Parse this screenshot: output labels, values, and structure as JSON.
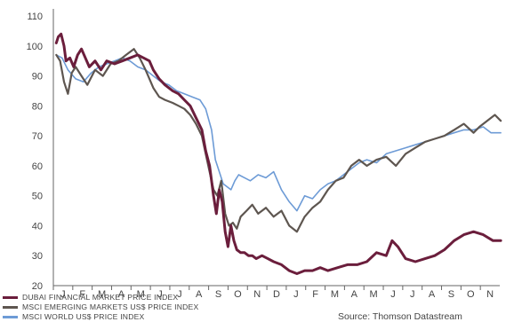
{
  "chart_data": {
    "type": "line",
    "title": "",
    "xlabel": "",
    "ylabel": "",
    "ylim": [
      20,
      110
    ],
    "yticks": [
      20,
      30,
      40,
      50,
      60,
      70,
      80,
      90,
      100,
      110
    ],
    "months": [
      "J",
      "F",
      "M",
      "A",
      "M",
      "J",
      "J",
      "A",
      "S",
      "O",
      "N",
      "D",
      "J",
      "F",
      "M",
      "A",
      "M",
      "J",
      "J",
      "A",
      "S",
      "O",
      "N"
    ],
    "series": [
      {
        "name": "DUBAI FINANCIAL MARKET PRICE INDEX",
        "color": "#6b1e3c",
        "x": [
          0,
          0.1,
          0.25,
          0.4,
          0.5,
          0.7,
          0.9,
          1.1,
          1.3,
          1.5,
          1.7,
          2.0,
          2.3,
          2.6,
          3.0,
          3.4,
          3.8,
          4.2,
          4.5,
          4.8,
          5.0,
          5.3,
          5.6,
          6.0,
          6.3,
          6.6,
          6.9,
          7.2,
          7.5,
          7.7,
          7.9,
          8.1,
          8.25,
          8.4,
          8.55,
          8.7,
          8.85,
          9.0,
          9.15,
          9.3,
          9.5,
          9.7,
          9.9,
          10.1,
          10.3,
          10.6,
          10.9,
          11.2,
          11.6,
          12.0,
          12.4,
          12.8,
          13.2,
          13.6,
          14.0,
          14.5,
          15.0,
          15.5,
          16.0,
          16.5,
          17.0,
          17.3,
          17.6,
          18.0,
          18.5,
          19.0,
          19.5,
          20.0,
          20.5,
          21.0,
          21.5,
          22.0,
          22.5,
          22.9
        ],
        "values": [
          101,
          103,
          104,
          100,
          95,
          96,
          93,
          97,
          99,
          96,
          93,
          95,
          92,
          95,
          94,
          95,
          96,
          97,
          96,
          95,
          92,
          89,
          87,
          85,
          84,
          82,
          80,
          76,
          72,
          65,
          60,
          50,
          44,
          52,
          48,
          38,
          33,
          40,
          35,
          32,
          31,
          31,
          30,
          30,
          29,
          30,
          29,
          28,
          27,
          25,
          24,
          25,
          25,
          26,
          25,
          26,
          27,
          27,
          28,
          31,
          30,
          35,
          33,
          29,
          28,
          29,
          30,
          32,
          35,
          37,
          38,
          37,
          35,
          35
        ]
      },
      {
        "name": "MSCI EMERGING MARKETS US$ PRICE INDEX",
        "color": "#5e5650",
        "x": [
          0,
          0.2,
          0.4,
          0.6,
          0.8,
          1.0,
          1.3,
          1.6,
          2.0,
          2.4,
          2.8,
          3.2,
          3.6,
          4.0,
          4.3,
          4.6,
          5.0,
          5.3,
          5.6,
          6.0,
          6.3,
          6.6,
          6.9,
          7.2,
          7.5,
          7.7,
          7.9,
          8.1,
          8.3,
          8.5,
          8.7,
          8.9,
          9.1,
          9.3,
          9.5,
          9.8,
          10.1,
          10.4,
          10.8,
          11.2,
          11.6,
          12.0,
          12.4,
          12.8,
          13.2,
          13.6,
          14.0,
          14.4,
          14.8,
          15.2,
          15.6,
          16.0,
          16.5,
          17.0,
          17.5,
          18.0,
          18.5,
          19.0,
          19.5,
          20.0,
          20.5,
          21.0,
          21.5,
          21.8,
          22.2,
          22.6,
          22.9
        ],
        "values": [
          97,
          95,
          88,
          84,
          91,
          93,
          90,
          87,
          92,
          90,
          94,
          95,
          97,
          99,
          96,
          92,
          86,
          83,
          82,
          81,
          80,
          79,
          77,
          74,
          70,
          64,
          58,
          52,
          50,
          55,
          44,
          40,
          41,
          39,
          43,
          45,
          47,
          44,
          46,
          43,
          45,
          40,
          38,
          43,
          46,
          48,
          52,
          55,
          56,
          60,
          62,
          60,
          62,
          63,
          60,
          64,
          66,
          68,
          69,
          70,
          72,
          74,
          71,
          73,
          75,
          77,
          75
        ]
      },
      {
        "name": "MSCI WORLD US$ PRICE INDEX",
        "color": "#6d9bd6",
        "x": [
          0,
          0.3,
          0.6,
          1.0,
          1.4,
          1.8,
          2.2,
          2.6,
          3.0,
          3.4,
          3.8,
          4.2,
          4.6,
          5.0,
          5.4,
          5.8,
          6.2,
          6.6,
          7.0,
          7.4,
          7.7,
          8.0,
          8.2,
          8.4,
          8.6,
          8.8,
          9.0,
          9.2,
          9.4,
          9.7,
          10.0,
          10.4,
          10.8,
          11.2,
          11.6,
          12.0,
          12.4,
          12.8,
          13.2,
          13.6,
          14.0,
          14.4,
          14.8,
          15.2,
          15.6,
          16.0,
          16.5,
          17.0,
          17.5,
          18.0,
          18.5,
          19.0,
          19.5,
          20.0,
          20.5,
          21.0,
          21.5,
          22.0,
          22.4,
          22.9
        ],
        "values": [
          97,
          96,
          92,
          89,
          88,
          91,
          93,
          94,
          95,
          96,
          95,
          93,
          92,
          90,
          88,
          87,
          85,
          84,
          83,
          82,
          79,
          72,
          62,
          58,
          54,
          53,
          52,
          55,
          57,
          56,
          55,
          57,
          56,
          58,
          52,
          48,
          45,
          50,
          49,
          52,
          54,
          55,
          57,
          59,
          61,
          62,
          61,
          64,
          65,
          66,
          67,
          68,
          69,
          70,
          71,
          72,
          72,
          73,
          71,
          71
        ]
      }
    ],
    "legend_position": "bottom-left",
    "source": "Source: Thomson Datastream"
  }
}
